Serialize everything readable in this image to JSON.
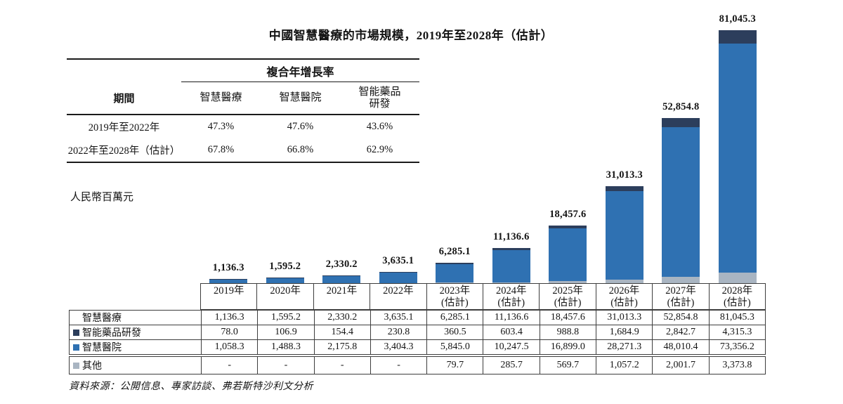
{
  "title": "中國智慧醫療的市場規模，2019年至2028年（估計）",
  "unit_label": "人民幣百萬元",
  "source": "資料來源：公開信息、專家訪談、弗若斯特沙利文分析",
  "colors": {
    "smart_hospital_blue": "#2f71b2",
    "smart_drug_rd_navy": "#2c3e5c",
    "other_gray": "#a9b5c2",
    "table_border": "#3d3d3d"
  },
  "cagr_table": {
    "header": "複合年增長率",
    "period_label": "期間",
    "columns": [
      "智慧醫療",
      "智慧醫院",
      "智能藥品\n研發"
    ],
    "rows": [
      {
        "period": "2019年至2022年",
        "values": [
          "47.3%",
          "47.6%",
          "43.6%"
        ]
      },
      {
        "period": "2022年至2028年（估計）",
        "values": [
          "67.8%",
          "66.8%",
          "62.9%"
        ]
      }
    ]
  },
  "chart_data": {
    "type": "bar",
    "stacked": true,
    "title": "中國智慧醫療的市場規模，2019年至2028年（估計）",
    "ylabel": "人民幣百萬元",
    "ylim": [
      0,
      81045.3
    ],
    "grid": false,
    "legend_position": "table-rows-below-chart",
    "categories": [
      {
        "label": "2019年",
        "note": ""
      },
      {
        "label": "2020年",
        "note": ""
      },
      {
        "label": "2021年",
        "note": ""
      },
      {
        "label": "2022年",
        "note": ""
      },
      {
        "label": "2023年",
        "note": "(估計)"
      },
      {
        "label": "2024年",
        "note": "(估計)"
      },
      {
        "label": "2025年",
        "note": "(估計)"
      },
      {
        "label": "2026年",
        "note": "(估計)"
      },
      {
        "label": "2027年",
        "note": "(估計)"
      },
      {
        "label": "2028年",
        "note": "(估計)"
      }
    ],
    "stack_order": "bottom-to-top",
    "series": [
      {
        "key": "other",
        "name": "其他",
        "color": "#a9b5c2",
        "values": [
          0,
          0,
          0,
          0,
          79.7,
          285.7,
          569.7,
          1057.2,
          2001.7,
          3373.8
        ]
      },
      {
        "key": "smart-hospital",
        "name": "智慧醫院",
        "color": "#2f71b2",
        "values": [
          1058.3,
          1488.3,
          2175.8,
          3404.3,
          5845.0,
          10247.5,
          16899.0,
          28271.3,
          48010.4,
          73356.2
        ]
      },
      {
        "key": "smart-drug-rd",
        "name": "智能藥品研發",
        "color": "#2c3e5c",
        "values": [
          78.0,
          106.9,
          154.4,
          230.8,
          360.5,
          603.4,
          988.8,
          1684.9,
          2842.7,
          4315.3
        ]
      }
    ],
    "totals_series_name": "智慧醫療",
    "totals": [
      1136.3,
      1595.2,
      2330.2,
      3635.1,
      6285.1,
      11136.6,
      18457.6,
      31013.3,
      52854.8,
      81045.3
    ],
    "totals_formatted": [
      "1,136.3",
      "1,595.2",
      "2,330.2",
      "3,635.1",
      "6,285.1",
      "11,136.6",
      "18,457.6",
      "31,013.3",
      "52,854.8",
      "81,045.3"
    ]
  },
  "data_table": {
    "rows": [
      {
        "label": "智慧醫療",
        "swatch": null,
        "separate": false,
        "cells": [
          "1,136.3",
          "1,595.2",
          "2,330.2",
          "3,635.1",
          "6,285.1",
          "11,136.6",
          "18,457.6",
          "31,013.3",
          "52,854.8",
          "81,045.3"
        ]
      },
      {
        "label": "智能藥品研發",
        "swatch": "#2c3e5c",
        "separate": false,
        "cells": [
          "78.0",
          "106.9",
          "154.4",
          "230.8",
          "360.5",
          "603.4",
          "988.8",
          "1,684.9",
          "2,842.7",
          "4,315.3"
        ]
      },
      {
        "label": "智慧醫院",
        "swatch": "#2f71b2",
        "separate": false,
        "cells": [
          "1,058.3",
          "1,488.3",
          "2,175.8",
          "3,404.3",
          "5,845.0",
          "10,247.5",
          "16,899.0",
          "28,271.3",
          "48,010.4",
          "73,356.2"
        ]
      },
      {
        "label": "其他",
        "swatch": "#a9b5c2",
        "separate": true,
        "cells": [
          "-",
          "-",
          "-",
          "-",
          "79.7",
          "285.7",
          "569.7",
          "1,057.2",
          "2,001.7",
          "3,373.8"
        ]
      }
    ]
  }
}
